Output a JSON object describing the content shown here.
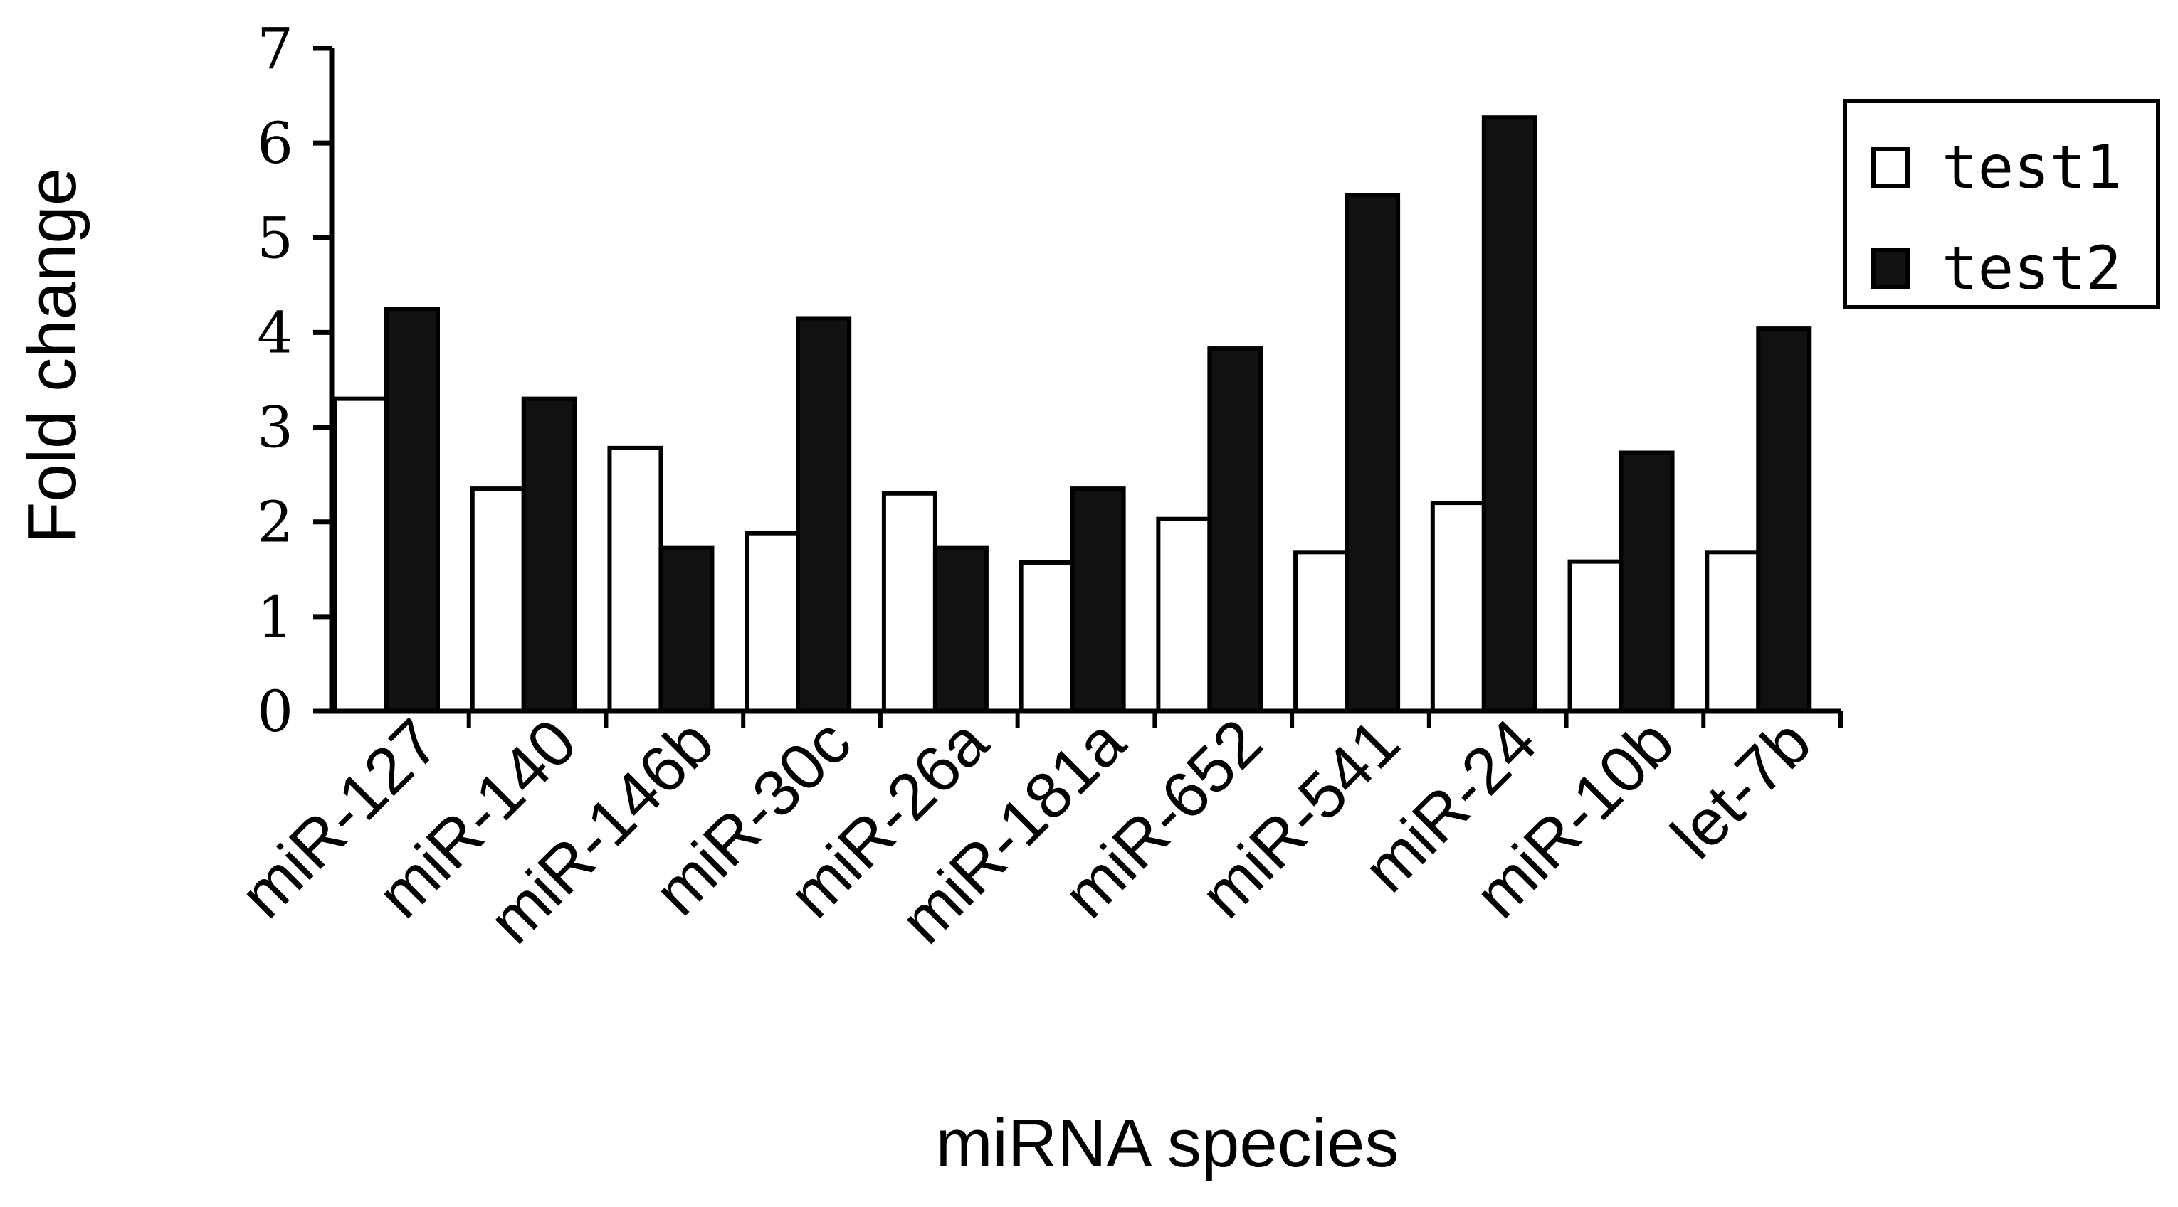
{
  "chart_data": {
    "type": "bar",
    "title": "",
    "xlabel": "miRNA species",
    "ylabel": "Fold change",
    "ylim": [
      0,
      7
    ],
    "yticks": [
      "0",
      "1",
      "2",
      "3",
      "4",
      "5",
      "6",
      "7"
    ],
    "grid": false,
    "legend_position": "top-right",
    "categories": [
      "miR-127",
      "miR-140",
      "miR-146b",
      "miR-30c",
      "miR-26a",
      "miR-181a",
      "miR-652",
      "miR-541",
      "miR-24",
      "miR-10b",
      "let-7b"
    ],
    "series": [
      {
        "name": "test1",
        "color": "#ffffff",
        "values": [
          3.3,
          2.35,
          2.78,
          1.88,
          2.3,
          1.57,
          2.03,
          1.68,
          2.2,
          1.58,
          1.68
        ]
      },
      {
        "name": "test2",
        "color": "#111111",
        "values": [
          4.25,
          3.3,
          1.73,
          4.15,
          1.73,
          2.35,
          3.83,
          5.45,
          6.27,
          2.73,
          4.04
        ]
      }
    ]
  }
}
